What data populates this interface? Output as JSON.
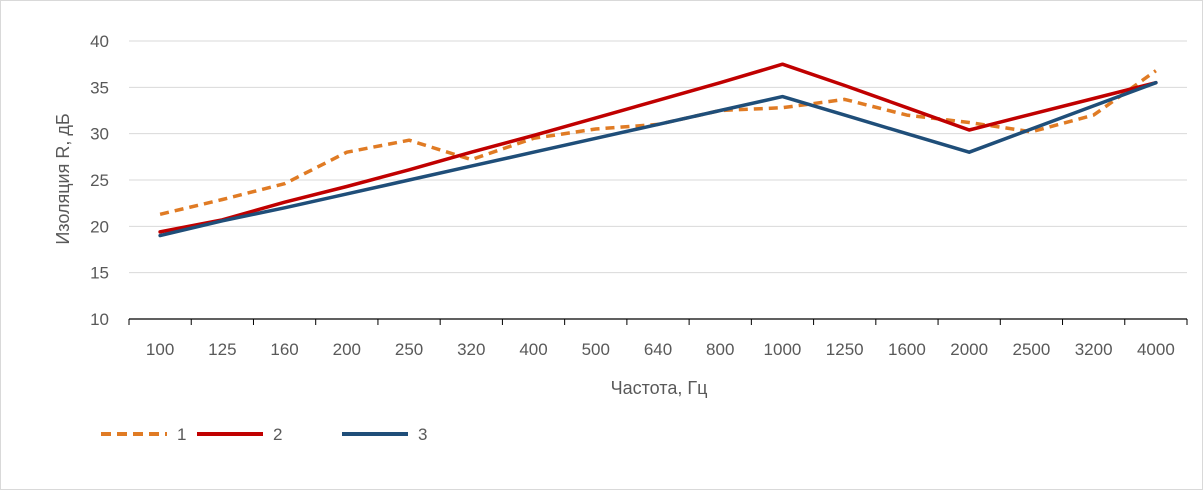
{
  "chart_data": {
    "type": "line",
    "xlabel": "Частота, Гц",
    "ylabel": "Изоляция R, дБ",
    "categories": [
      "100",
      "125",
      "160",
      "200",
      "250",
      "320",
      "400",
      "500",
      "640",
      "800",
      "1000",
      "1250",
      "1600",
      "2000",
      "2500",
      "3200",
      "4000"
    ],
    "ylim": [
      10,
      40
    ],
    "yticks": [
      10,
      15,
      20,
      25,
      30,
      35,
      40
    ],
    "grid": true,
    "legend_position": "bottom-left",
    "series": [
      {
        "name": "1",
        "color": "#E07B24",
        "style": "dashed",
        "values": [
          21.3,
          22.9,
          24.6,
          28.0,
          29.3,
          27.2,
          29.5,
          30.5,
          31.0,
          32.5,
          32.8,
          33.7,
          32.0,
          31.2,
          30.2,
          32.0,
          36.8
        ]
      },
      {
        "name": "2",
        "color": "#C00000",
        "style": "solid",
        "values": [
          19.4,
          20.7,
          22.6,
          24.3,
          26.1,
          28.0,
          29.8,
          31.7,
          33.6,
          35.5,
          37.5,
          35.2,
          32.8,
          30.4,
          32.1,
          33.8,
          35.5
        ]
      },
      {
        "name": "3",
        "color": "#1F4E79",
        "style": "solid",
        "values": [
          19.0,
          20.6,
          22.0,
          23.5,
          25.0,
          26.5,
          28.0,
          29.5,
          31.0,
          32.5,
          34.0,
          32.0,
          30.0,
          28.0,
          30.5,
          33.0,
          35.5
        ]
      }
    ]
  }
}
